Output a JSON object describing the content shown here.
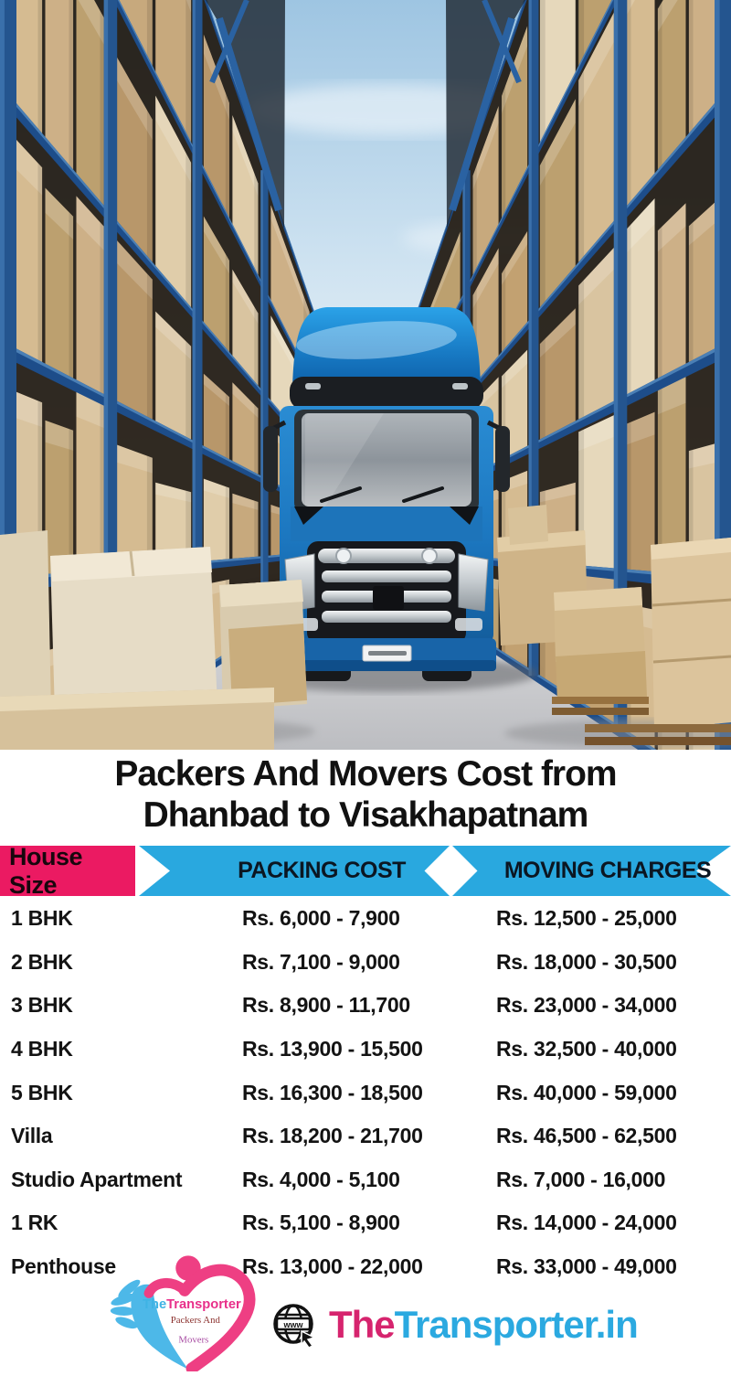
{
  "title": {
    "line1": "Packers And Movers Cost from",
    "line2": "Dhanbad to Visakhapatnam"
  },
  "table": {
    "headers": {
      "house": "House Size",
      "packing": "PACKING COST",
      "moving": "MOVING CHARGES"
    },
    "rows": [
      {
        "house": "1 BHK",
        "packing": "Rs. 6,000 - 7,900",
        "moving": "Rs. 12,500 - 25,000"
      },
      {
        "house": "2 BHK",
        "packing": "Rs. 7,100 - 9,000",
        "moving": "Rs. 18,000 - 30,500"
      },
      {
        "house": "3 BHK",
        "packing": "Rs. 8,900 - 11,700",
        "moving": "Rs. 23,000 - 34,000"
      },
      {
        "house": "4 BHK",
        "packing": "Rs. 13,900 - 15,500",
        "moving": "Rs. 32,500 - 40,000"
      },
      {
        "house": "5 BHK",
        "packing": "Rs. 16,300 - 18,500",
        "moving": "Rs. 40,000 - 59,000"
      },
      {
        "house": "Villa",
        "packing": "Rs. 18,200 - 21,700",
        "moving": "Rs. 46,500 - 62,500"
      },
      {
        "house": "Studio Apartment",
        "packing": "Rs. 4,000 - 5,100",
        "moving": "Rs. 7,000 - 16,000"
      },
      {
        "house": "1 RK",
        "packing": "Rs. 5,100 - 8,900",
        "moving": "Rs. 14,000 - 24,000"
      },
      {
        "house": "Penthouse",
        "packing": "Rs. 13,000 - 22,000",
        "moving": "Rs. 33,000 - 49,000"
      }
    ]
  },
  "footer": {
    "logo": {
      "the": "The",
      "transporter": "Transporter",
      "line2": "Packers And",
      "line3": "Movers"
    },
    "globe_label": "www",
    "site": {
      "prefix": "The",
      "rest": "Transporter.in"
    }
  },
  "colors": {
    "pink": "#EB1A62",
    "blue": "#29A8DF",
    "title": "#111111",
    "row_text": "#131313",
    "brand_pink": "#D6246E",
    "brand_blue": "#2BA9E0"
  }
}
